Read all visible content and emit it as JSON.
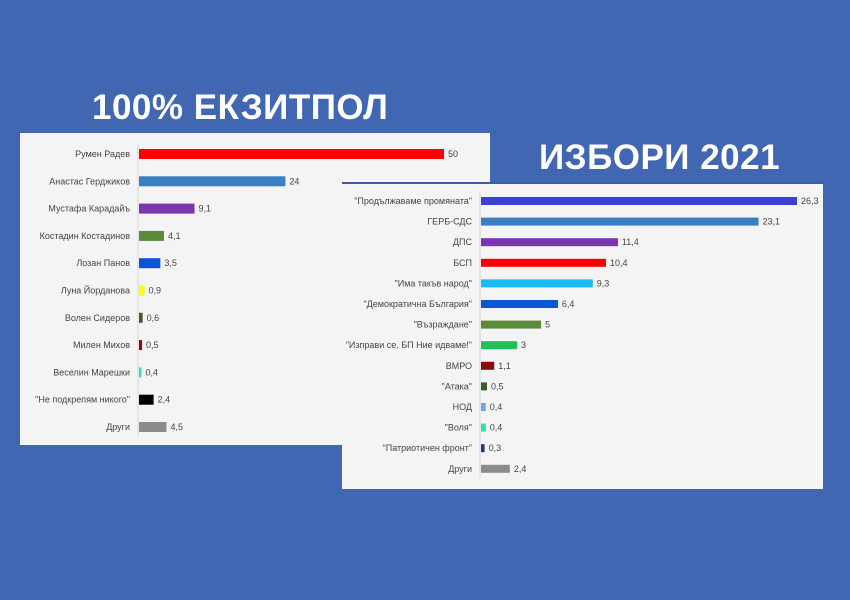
{
  "titles": {
    "left": "100% ЕКЗИТПОЛ",
    "right": "ИЗБОРИ 2021"
  },
  "chart_data": [
    {
      "type": "bar",
      "orientation": "horizontal",
      "title": "100% ЕКЗИТПОЛ",
      "categories": [
        "Румен Радев",
        "Анастас Герджиков",
        "Мустафа Карадайъ",
        "Костадин Костадинов",
        "Лозан Панов",
        "Луна Йорданова",
        "Волен Сидеров",
        "Милен Михов",
        "Веселин Марешки",
        "\"Не подкрепям никого\"",
        "Други"
      ],
      "values": [
        50,
        24,
        9.1,
        4.1,
        3.5,
        0.9,
        0.6,
        0.5,
        0.4,
        2.4,
        4.5
      ],
      "value_labels": [
        "50",
        "24",
        "9,1",
        "4,1",
        "3,5",
        "0,9",
        "0,6",
        "0,5",
        "0,4",
        "2,4",
        "4,5"
      ],
      "colors": [
        "#ff0000",
        "#3a7fc4",
        "#7a35b0",
        "#5a8a3c",
        "#0a55d6",
        "#ffff00",
        "#3b5e2a",
        "#a00000",
        "#2fe0c0",
        "#000000",
        "#8c8c8c"
      ],
      "xlim": [
        0,
        50
      ]
    },
    {
      "type": "bar",
      "orientation": "horizontal",
      "title": "ИЗБОРИ 2021",
      "categories": [
        "\"Продължаваме промяната\"",
        "ГЕРБ-СДС",
        "ДПС",
        "БСП",
        "\"Има такъв народ\"",
        "\"Демократична България\"",
        "\"Възраждане\"",
        "\"Изправи се. БП Ние идваме!\"",
        "ВМРО",
        "\"Атака\"",
        "НОД",
        "\"Воля\"",
        "\"Патриотичен фронт\"",
        "Други"
      ],
      "values": [
        26.3,
        23.1,
        11.4,
        10.4,
        9.3,
        6.4,
        5,
        3,
        1.1,
        0.5,
        0.4,
        0.4,
        0.3,
        2.4
      ],
      "value_labels": [
        "26,3",
        "23,1",
        "11,4",
        "10,4",
        "9,3",
        "6,4",
        "5",
        "3",
        "1,1",
        "0,5",
        "0,4",
        "0,4",
        "0,3",
        "2,4"
      ],
      "colors": [
        "#3a3fd6",
        "#3a7fc4",
        "#7a35b0",
        "#ff0000",
        "#19baf5",
        "#0a55d6",
        "#5a8a3c",
        "#1fbf5a",
        "#8b0a0a",
        "#3b5e2a",
        "#6fa8e6",
        "#2fe0b0",
        "#1d3a7a",
        "#8c8c8c"
      ],
      "xlim": [
        0,
        26.3
      ]
    }
  ]
}
